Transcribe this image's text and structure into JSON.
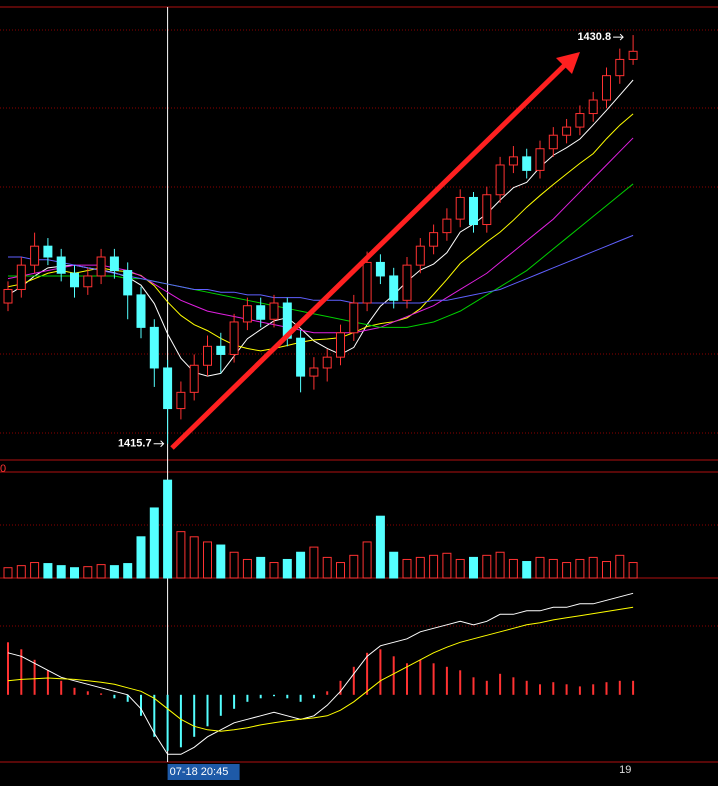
{
  "chart_data": [
    {
      "type": "candlestick",
      "open": [
        1420.9,
        1421.4,
        1422.3,
        1423.0,
        1422.6,
        1422.0,
        1421.5,
        1421.9,
        1422.6,
        1422.1,
        1421.2,
        1420.0,
        1418.5,
        1417.0,
        1417.6,
        1418.6,
        1419.3,
        1419.0,
        1420.2,
        1420.8,
        1420.3,
        1420.9,
        1419.6,
        1418.2,
        1418.5,
        1418.9,
        1419.8,
        1420.9,
        1422.4,
        1421.9,
        1421.0,
        1422.3,
        1423.0,
        1423.5,
        1424.0,
        1424.8,
        1423.8,
        1424.9,
        1426.0,
        1426.3,
        1425.8,
        1426.6,
        1427.1,
        1427.4,
        1427.9,
        1428.4,
        1429.3,
        1429.9
      ],
      "high": [
        1421.7,
        1422.6,
        1423.5,
        1423.3,
        1422.9,
        1422.3,
        1422.2,
        1422.9,
        1422.9,
        1422.4,
        1421.5,
        1420.3,
        1418.8,
        1418.0,
        1419.0,
        1419.7,
        1419.8,
        1420.5,
        1421.1,
        1421.1,
        1421.2,
        1421.1,
        1419.9,
        1418.9,
        1419.2,
        1420.1,
        1421.2,
        1422.8,
        1422.7,
        1422.2,
        1422.6,
        1423.3,
        1423.8,
        1424.4,
        1425.1,
        1425.0,
        1425.2,
        1426.3,
        1426.7,
        1426.6,
        1426.9,
        1427.4,
        1427.7,
        1428.2,
        1428.7,
        1429.6,
        1430.3,
        1430.8
      ],
      "low": [
        1420.6,
        1421.1,
        1422.0,
        1422.3,
        1421.7,
        1421.1,
        1421.2,
        1421.6,
        1421.8,
        1420.3,
        1419.6,
        1417.8,
        1415.7,
        1416.6,
        1417.3,
        1418.2,
        1418.3,
        1418.7,
        1419.9,
        1420.0,
        1420.0,
        1419.3,
        1417.6,
        1417.7,
        1418.0,
        1418.6,
        1419.5,
        1420.6,
        1421.6,
        1420.7,
        1420.7,
        1422.0,
        1422.7,
        1423.2,
        1423.7,
        1423.5,
        1423.5,
        1424.6,
        1425.7,
        1425.5,
        1425.5,
        1426.3,
        1426.8,
        1427.1,
        1427.6,
        1428.1,
        1429.0,
        1429.7
      ],
      "close": [
        1421.4,
        1422.3,
        1423.0,
        1422.6,
        1422.0,
        1421.5,
        1421.9,
        1422.6,
        1422.1,
        1421.2,
        1420.0,
        1418.5,
        1417.0,
        1417.6,
        1418.6,
        1419.3,
        1419.0,
        1420.2,
        1420.8,
        1420.3,
        1420.9,
        1419.6,
        1418.2,
        1418.5,
        1418.9,
        1419.8,
        1420.9,
        1422.4,
        1421.9,
        1421.0,
        1422.3,
        1423.0,
        1423.5,
        1424.0,
        1424.8,
        1423.8,
        1424.9,
        1426.0,
        1426.3,
        1425.8,
        1426.6,
        1427.1,
        1427.4,
        1427.9,
        1428.4,
        1429.3,
        1429.9,
        1430.2
      ],
      "up_color": "#ff3232",
      "down_color": "#54ffff",
      "ylim": [
        1415.1,
        1431.8
      ],
      "high_label": "1430.8",
      "low_label": "1415.7",
      "crosshair_label": "07-18 20:45",
      "x_label": "19",
      "series": [
        {
          "color": "#ffffff",
          "values": [
            1421.2,
            1421.5,
            1421.9,
            1422.2,
            1422.26,
            1422.3,
            1422.2,
            1422.12,
            1422.02,
            1421.86,
            1421.56,
            1420.88,
            1419.76,
            1418.86,
            1418.34,
            1418.2,
            1418.3,
            1418.94,
            1419.58,
            1419.92,
            1420.24,
            1420.36,
            1419.96,
            1419.5,
            1419.22,
            1419.0,
            1419.26,
            1420.1,
            1420.78,
            1421.2,
            1421.7,
            1422.12,
            1422.34,
            1422.76,
            1423.52,
            1423.82,
            1424.2,
            1424.7,
            1425.16,
            1425.36,
            1425.92,
            1426.36,
            1426.64,
            1426.96,
            1427.48,
            1428.02,
            1428.58,
            1429.14
          ]
        },
        {
          "color": "#ffff00",
          "values": [
            1421.5,
            1421.6,
            1421.8,
            1422.0,
            1422.1,
            1422.0,
            1422.1,
            1422.2,
            1422.1,
            1422.06,
            1421.92,
            1421.54,
            1420.94,
            1420.44,
            1420.1,
            1419.88,
            1419.59,
            1419.35,
            1419.22,
            1419.13,
            1419.22,
            1419.33,
            1419.45,
            1419.54,
            1419.57,
            1419.62,
            1419.81,
            1420.03,
            1420.14,
            1420.21,
            1420.35,
            1420.69,
            1421.22,
            1421.77,
            1422.36,
            1422.76,
            1423.16,
            1423.52,
            1423.96,
            1424.44,
            1424.87,
            1425.28,
            1425.67,
            1426.06,
            1426.42,
            1426.97,
            1427.47,
            1427.89
          ]
        },
        {
          "color": "#e020e0",
          "values": [
            1421.8,
            1421.9,
            1422.0,
            1422.1,
            1422.2,
            1422.3,
            1422.3,
            1422.3,
            1422.2,
            1422.1,
            1421.9,
            1421.6,
            1421.3,
            1421.0,
            1420.8,
            1420.6,
            1420.5,
            1420.4,
            1420.3,
            1420.2,
            1420.1,
            1420.0,
            1419.9,
            1419.8,
            1419.8,
            1419.8,
            1419.8,
            1419.9,
            1420.0,
            1420.2,
            1420.4,
            1420.6,
            1420.8,
            1421.1,
            1421.4,
            1421.7,
            1422.0,
            1422.4,
            1422.8,
            1423.2,
            1423.6,
            1424.0,
            1424.5,
            1425.0,
            1425.5,
            1426.0,
            1426.5,
            1427.0
          ]
        },
        {
          "color": "#00d000",
          "values": [
            1421.9,
            1421.9,
            1421.9,
            1421.9,
            1421.9,
            1421.9,
            1421.9,
            1421.9,
            1421.9,
            1421.8,
            1421.8,
            1421.7,
            1421.6,
            1421.5,
            1421.4,
            1421.3,
            1421.2,
            1421.1,
            1421.0,
            1420.9,
            1420.8,
            1420.7,
            1420.6,
            1420.5,
            1420.4,
            1420.3,
            1420.2,
            1420.1,
            1420.0,
            1420.0,
            1420.0,
            1420.1,
            1420.2,
            1420.4,
            1420.6,
            1420.9,
            1421.2,
            1421.5,
            1421.8,
            1422.1,
            1422.5,
            1422.9,
            1423.3,
            1423.7,
            1424.1,
            1424.5,
            1424.9,
            1425.3
          ]
        },
        {
          "color": "#6060ff",
          "values": [
            1422.6,
            1422.6,
            1422.5,
            1422.5,
            1422.4,
            1422.3,
            1422.2,
            1422.1,
            1422.0,
            1421.9,
            1421.8,
            1421.7,
            1421.6,
            1421.5,
            1421.4,
            1421.4,
            1421.3,
            1421.3,
            1421.2,
            1421.2,
            1421.1,
            1421.1,
            1421.1,
            1421.0,
            1421.0,
            1421.0,
            1420.9,
            1420.9,
            1420.9,
            1420.9,
            1420.9,
            1420.9,
            1421.0,
            1421.0,
            1421.1,
            1421.2,
            1421.3,
            1421.4,
            1421.6,
            1421.8,
            1422.0,
            1422.2,
            1422.4,
            1422.6,
            1422.8,
            1423.0,
            1423.2,
            1423.4
          ]
        }
      ]
    },
    {
      "type": "bar",
      "axis_label": "0",
      "ylim": [
        0,
        100
      ],
      "values": [
        10,
        12,
        15,
        14,
        12,
        10,
        11,
        13,
        12,
        14,
        40,
        68,
        95,
        45,
        40,
        35,
        32,
        25,
        18,
        20,
        15,
        18,
        25,
        30,
        20,
        15,
        22,
        35,
        60,
        25,
        18,
        20,
        22,
        24,
        18,
        20,
        22,
        25,
        18,
        16,
        20,
        18,
        15,
        18,
        20,
        16,
        22,
        15
      ]
    },
    {
      "type": "macd",
      "ylim": [
        -0.96,
        1.64
      ],
      "hist": [
        0.75,
        0.65,
        0.5,
        0.35,
        0.2,
        0.1,
        0.05,
        0.02,
        -0.05,
        -0.1,
        -0.3,
        -0.6,
        -0.8,
        -0.75,
        -0.6,
        -0.45,
        -0.3,
        -0.2,
        -0.1,
        -0.05,
        -0.02,
        -0.05,
        -0.1,
        -0.05,
        0.05,
        0.2,
        0.4,
        0.6,
        0.65,
        0.55,
        0.45,
        0.5,
        0.45,
        0.4,
        0.35,
        0.25,
        0.2,
        0.3,
        0.25,
        0.2,
        0.15,
        0.18,
        0.15,
        0.12,
        0.15,
        0.18,
        0.2,
        0.2
      ],
      "dif": [
        0.6,
        0.55,
        0.45,
        0.35,
        0.25,
        0.2,
        0.15,
        0.1,
        0.05,
        0.0,
        -0.2,
        -0.55,
        -0.85,
        -0.85,
        -0.75,
        -0.6,
        -0.5,
        -0.4,
        -0.35,
        -0.3,
        -0.25,
        -0.3,
        -0.35,
        -0.3,
        -0.15,
        0.05,
        0.3,
        0.55,
        0.7,
        0.75,
        0.8,
        0.9,
        0.95,
        1.0,
        1.05,
        1.0,
        1.05,
        1.15,
        1.15,
        1.2,
        1.2,
        1.25,
        1.25,
        1.3,
        1.3,
        1.35,
        1.4,
        1.45
      ],
      "dea": [
        0.2,
        0.22,
        0.23,
        0.24,
        0.23,
        0.22,
        0.2,
        0.18,
        0.15,
        0.1,
        0.05,
        -0.05,
        -0.2,
        -0.35,
        -0.45,
        -0.5,
        -0.52,
        -0.5,
        -0.47,
        -0.43,
        -0.4,
        -0.37,
        -0.35,
        -0.33,
        -0.3,
        -0.22,
        -0.1,
        0.05,
        0.2,
        0.3,
        0.4,
        0.5,
        0.6,
        0.68,
        0.75,
        0.8,
        0.85,
        0.9,
        0.95,
        1.0,
        1.03,
        1.07,
        1.1,
        1.13,
        1.16,
        1.19,
        1.22,
        1.25
      ],
      "hist_up_color": "#ff3232",
      "hist_down_color": "#54ffff",
      "dif_color": "#ffffff",
      "dea_color": "#ffff00"
    }
  ]
}
